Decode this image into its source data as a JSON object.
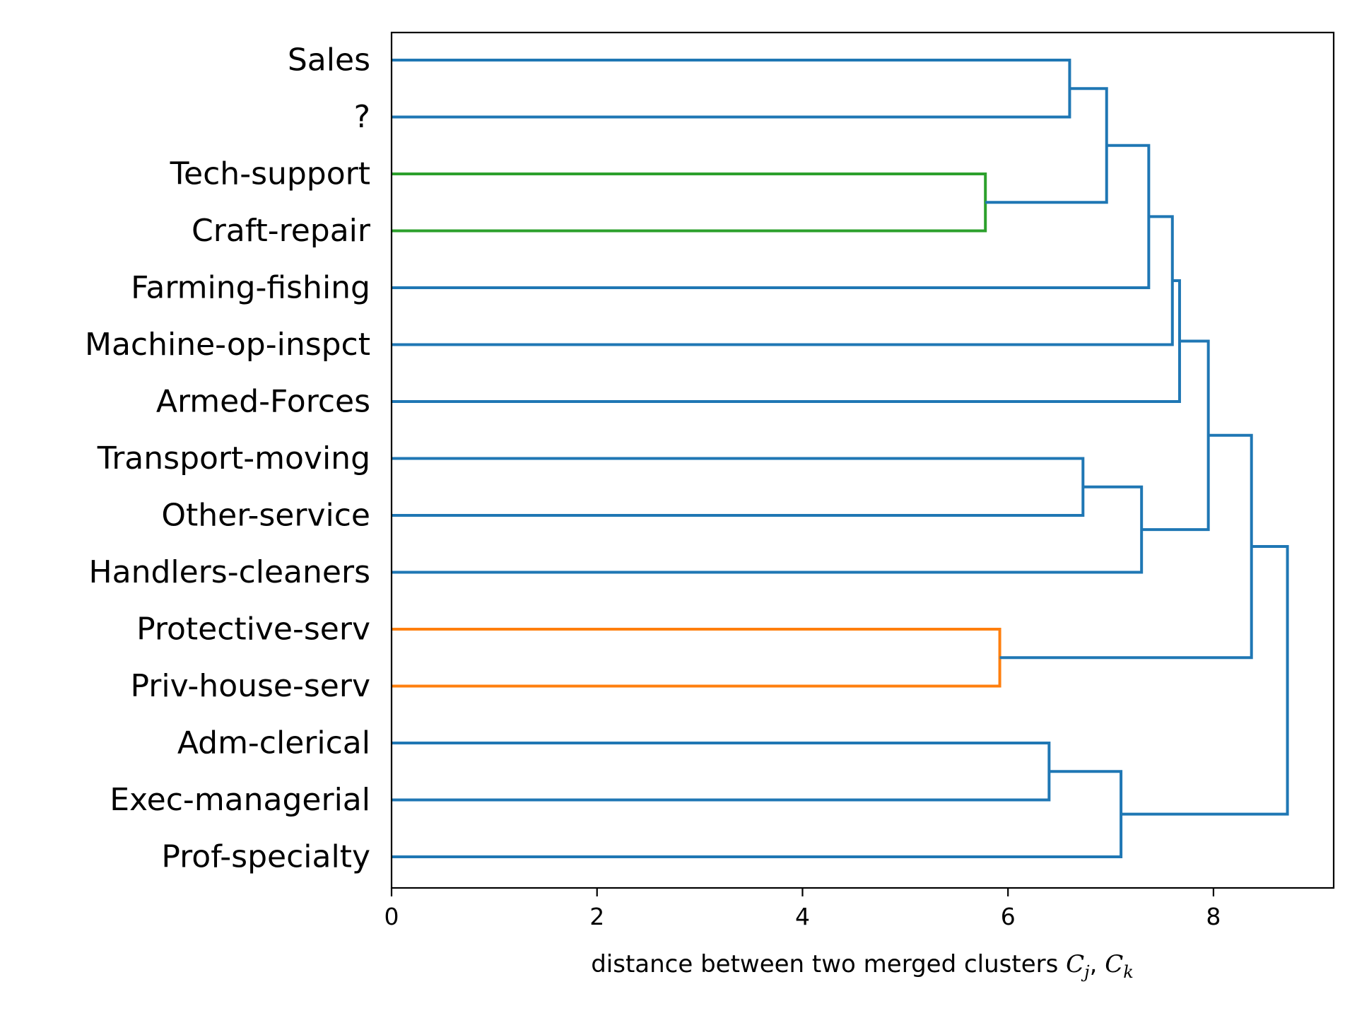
{
  "chart_data": {
    "type": "dendrogram",
    "orientation": "left",
    "xlabel_text": "distance between two merged clusters ",
    "xlabel_math": {
      "c1": "C",
      "s1": "j",
      "sep": ", ",
      "c2": "C",
      "s2": "k"
    },
    "xlim": [
      0,
      9.17
    ],
    "xticks": [
      0,
      2,
      4,
      6,
      8
    ],
    "tick_labels": [
      "0",
      "2",
      "4",
      "6",
      "8"
    ],
    "leaves": [
      "Sales",
      "?",
      "Tech-support",
      "Craft-repair",
      "Farming-fishing",
      "Machine-op-inspct",
      "Armed-Forces",
      "Transport-moving",
      "Other-service",
      "Handlers-cleaners",
      "Protective-serv",
      "Priv-house-serv",
      "Adm-clerical",
      "Exec-managerial",
      "Prof-specialty"
    ],
    "colors": {
      "default": "#1f77b4",
      "green": "#2ca02c",
      "orange": "#ff7f0e"
    },
    "merges": [
      {
        "id": "m1",
        "left": "L0",
        "right": "L1",
        "distance": 6.6,
        "color": "default"
      },
      {
        "id": "m2",
        "left": "L2",
        "right": "L3",
        "distance": 5.78,
        "color": "green"
      },
      {
        "id": "m3",
        "left": "m1",
        "right": "m2",
        "distance": 6.96,
        "color": "default"
      },
      {
        "id": "m4",
        "left": "m3",
        "right": "L4",
        "distance": 7.37,
        "color": "default"
      },
      {
        "id": "m5",
        "left": "m4",
        "right": "L5",
        "distance": 7.6,
        "color": "default"
      },
      {
        "id": "m6",
        "left": "m5",
        "right": "L6",
        "distance": 7.67,
        "color": "default"
      },
      {
        "id": "m7",
        "left": "L7",
        "right": "L8",
        "distance": 6.73,
        "color": "default"
      },
      {
        "id": "m8",
        "left": "m7",
        "right": "L9",
        "distance": 7.3,
        "color": "default"
      },
      {
        "id": "m9",
        "left": "m6",
        "right": "m8",
        "distance": 7.95,
        "color": "default"
      },
      {
        "id": "m10",
        "left": "L10",
        "right": "L11",
        "distance": 5.92,
        "color": "orange"
      },
      {
        "id": "m11",
        "left": "m9",
        "right": "m10",
        "distance": 8.37,
        "color": "default"
      },
      {
        "id": "m12",
        "left": "L12",
        "right": "L13",
        "distance": 6.4,
        "color": "default"
      },
      {
        "id": "m13",
        "left": "m12",
        "right": "L14",
        "distance": 7.1,
        "color": "default"
      },
      {
        "id": "m14",
        "left": "m11",
        "right": "m13",
        "distance": 8.72,
        "color": "default"
      }
    ]
  }
}
